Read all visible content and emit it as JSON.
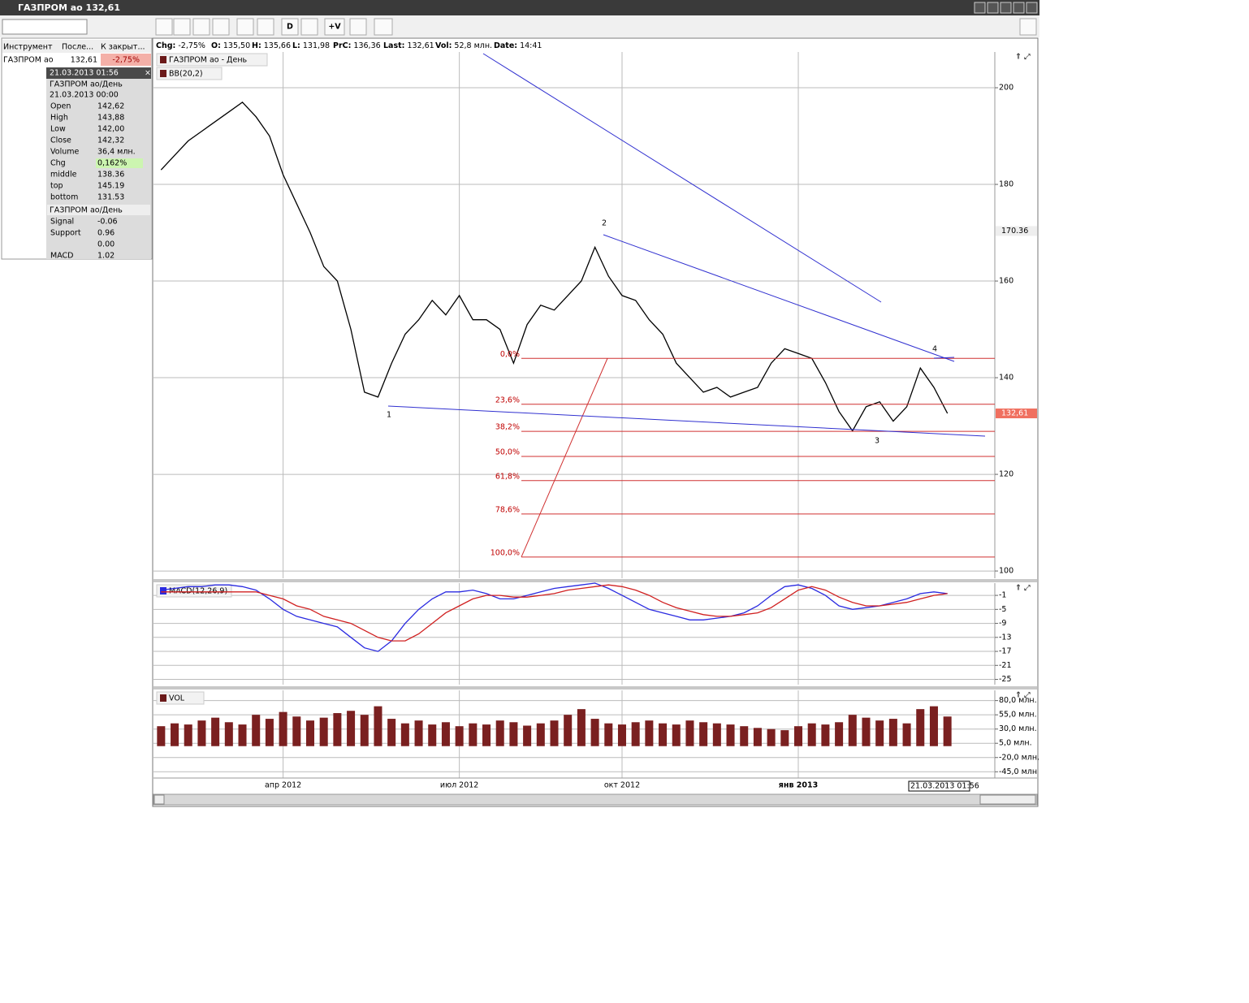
{
  "window": {
    "title": "ГАЗПРОМ ао 132,61"
  },
  "toolbar": {
    "buttons": [
      "D",
      "+V"
    ]
  },
  "status": [
    {
      "label": "Chg:",
      "value": "-2,75%"
    },
    {
      "label": "O:",
      "value": "135,50"
    },
    {
      "label": "H:",
      "value": "135,66"
    },
    {
      "label": "L:",
      "value": "131,98"
    },
    {
      "label": "PrC:",
      "value": "136,36"
    },
    {
      "label": "Last:",
      "value": "132,61"
    },
    {
      "label": "Vol:",
      "value": "52,8 млн."
    },
    {
      "label": "Date:",
      "value": "14:41"
    }
  ],
  "instruments": {
    "header": [
      "Инструмент",
      "После...",
      "К закрыт..."
    ],
    "rows": [
      [
        "ГАЗПРОМ ао",
        "132,61",
        "-2,75%"
      ]
    ]
  },
  "info": {
    "title": "21.03.2013 01:56",
    "section1": "ГАЗПРОМ ао/День",
    "date": "21.03.2013 00:00",
    "rows": [
      [
        "Open",
        "142,62"
      ],
      [
        "High",
        "143,88"
      ],
      [
        "Low",
        "142,00"
      ],
      [
        "Close",
        "142,32"
      ],
      [
        "Volume",
        "36,4 млн."
      ],
      [
        "Chg",
        "0,162%"
      ],
      [
        "middle",
        "138.36"
      ],
      [
        "top",
        "145.19"
      ],
      [
        "bottom",
        "131.53"
      ]
    ],
    "section2": "ГАЗПРОМ ао/День",
    "rows2": [
      [
        "Signal",
        "-0.06"
      ],
      [
        "Support",
        "0.96"
      ],
      [
        "0.00"
      ],
      [
        "MACD",
        "1.02"
      ]
    ]
  },
  "chart_data": [
    {
      "type": "line",
      "title": "ГАЗПРОМ ао - День",
      "indicator": "BB(20,2)",
      "series": [
        {
          "color": "#000000",
          "values": [
            183,
            186,
            189,
            191,
            193,
            195,
            197,
            194,
            190,
            182,
            176,
            170,
            163,
            160,
            150,
            137,
            136,
            143,
            149,
            152,
            156,
            153,
            157,
            152,
            152,
            150,
            143,
            151,
            155,
            154,
            157,
            160,
            167,
            161,
            157,
            156,
            152,
            149,
            143,
            140,
            137,
            138,
            136,
            137,
            138,
            143,
            146,
            145,
            144,
            139,
            133,
            129,
            134,
            135,
            131,
            134,
            142,
            138,
            132.61
          ]
        }
      ],
      "ylim": [
        98.5,
        207.4
      ],
      "yticks": [
        100,
        120,
        140,
        160,
        180,
        200
      ],
      "grid": true,
      "fib_levels": [
        {
          "value": 144.0,
          "label": "0,0%"
        },
        {
          "value": 134.5,
          "label": "23,6%"
        },
        {
          "value": 128.9,
          "label": "38,2%"
        },
        {
          "value": 123.7,
          "label": "50,0%"
        },
        {
          "value": 118.7,
          "label": "61,8%"
        },
        {
          "value": 111.8,
          "label": "78,6%"
        },
        {
          "value": 102.9,
          "label": "100,0%"
        }
      ],
      "price_markers": [
        {
          "value": 170.36,
          "label": "170.36"
        },
        {
          "value": 132.61,
          "label": "132,61"
        }
      ],
      "wave_labels": [
        "1",
        "2",
        "3",
        "4"
      ]
    },
    {
      "type": "line",
      "title": "MACD(12,26,9)",
      "series": [
        {
          "color": "#2a2ae0",
          "values": [
            0.5,
            1,
            1.5,
            1.5,
            2,
            2,
            1.5,
            0.5,
            -2,
            -5,
            -7,
            -8,
            -9,
            -10,
            -13,
            -16,
            -17,
            -14,
            -9,
            -5,
            -2,
            0,
            0,
            0.5,
            -0.5,
            -2,
            -2,
            -1,
            0,
            1,
            1.5,
            2,
            2.5,
            1,
            -1,
            -3,
            -5,
            -6,
            -7,
            -8,
            -8,
            -7.5,
            -7,
            -6,
            -4,
            -1,
            1.5,
            2,
            1,
            -1,
            -4,
            -5,
            -4.5,
            -4,
            -3,
            -2,
            -0.5,
            0,
            -0.5
          ]
        },
        {
          "color": "#d02020",
          "values": [
            0,
            0,
            0,
            0,
            0,
            0,
            0,
            0,
            -1,
            -2,
            -4,
            -5,
            -7,
            -8,
            -9,
            -11,
            -13,
            -14,
            -14,
            -12,
            -9,
            -6,
            -4,
            -2,
            -1,
            -1,
            -1.5,
            -1.5,
            -1,
            -0.5,
            0.5,
            1,
            1.5,
            2,
            1.5,
            0.5,
            -1,
            -3,
            -4.5,
            -5.5,
            -6.5,
            -7,
            -7,
            -6.5,
            -6,
            -4.5,
            -2,
            0.5,
            1.5,
            0.5,
            -1.5,
            -3,
            -4,
            -4,
            -3.5,
            -3,
            -2,
            -1,
            -0.5
          ]
        }
      ],
      "ylim": [
        -26.5,
        2.5
      ],
      "yticks": [
        -1,
        -5,
        -9,
        -13,
        -17,
        -21,
        -25
      ],
      "grid": true
    },
    {
      "type": "bar",
      "title": "VOL",
      "color": "#7a2020",
      "categories": [
        null,
        null,
        null,
        null,
        null,
        null,
        null,
        null,
        null,
        "апр 2012",
        null,
        null,
        null,
        null,
        null,
        null,
        null,
        null,
        null,
        null,
        null,
        null,
        "июл 2012",
        null,
        null,
        null,
        null,
        null,
        null,
        null,
        null,
        null,
        null,
        null,
        "окт 2012",
        null,
        null,
        null,
        null,
        null,
        null,
        null,
        null,
        null,
        null,
        null,
        null,
        "янв 2013",
        null,
        null,
        null,
        null,
        null,
        null,
        null,
        null,
        null,
        null,
        null
      ],
      "values": [
        35,
        40,
        38,
        45,
        50,
        42,
        38,
        55,
        48,
        60,
        52,
        45,
        50,
        58,
        62,
        55,
        70,
        48,
        40,
        45,
        38,
        42,
        35,
        40,
        38,
        45,
        42,
        36,
        40,
        45,
        55,
        65,
        48,
        40,
        38,
        42,
        45,
        40,
        38,
        45,
        42,
        40,
        38,
        35,
        32,
        30,
        28,
        35,
        40,
        38,
        42,
        55,
        50,
        45,
        48,
        40,
        65,
        70,
        52
      ],
      "ylim": [
        -56,
        98
      ],
      "yticks": [
        {
          "value": 80,
          "label": "80,0 млн."
        },
        {
          "value": 55,
          "label": "55,0 млн."
        },
        {
          "value": 30,
          "label": "30,0 млн."
        },
        {
          "value": 5,
          "label": "5,0 млн."
        },
        {
          "value": -20,
          "label": "-20,0 млн."
        },
        {
          "value": -45,
          "label": "-45,0 млн"
        }
      ],
      "grid": true,
      "cursor_label": "21.03.2013 01:56"
    }
  ]
}
